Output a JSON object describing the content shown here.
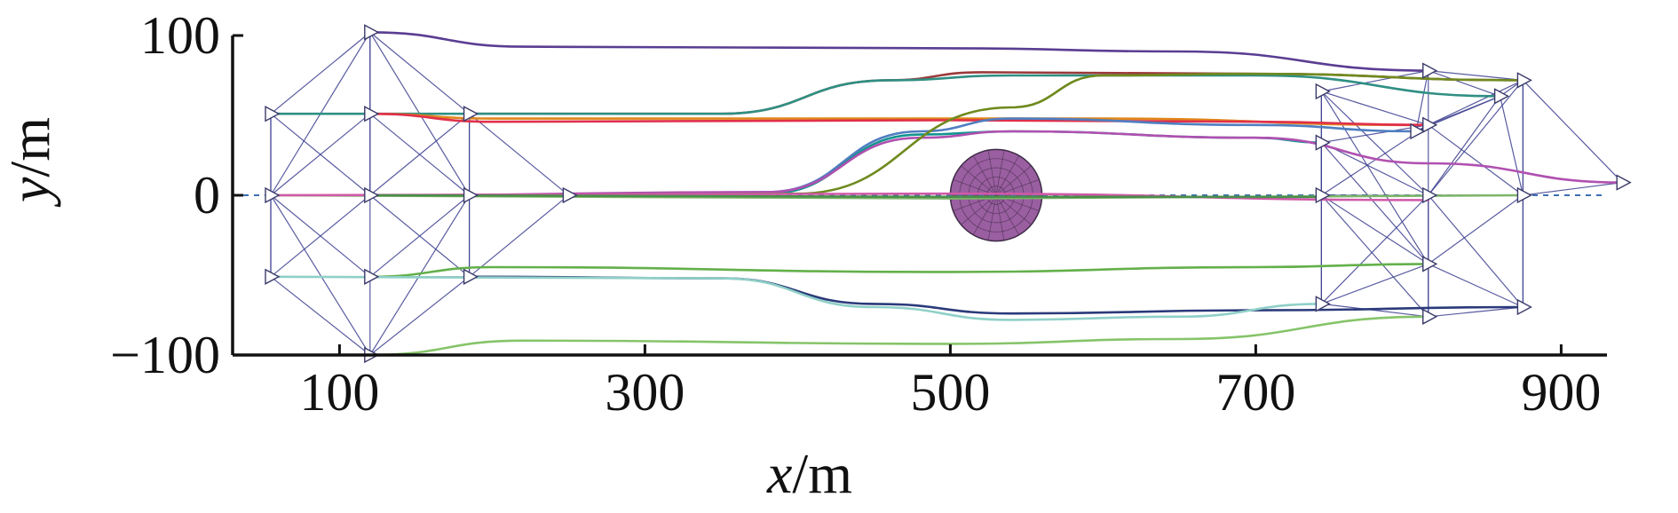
{
  "chart_data": {
    "type": "line",
    "title": "",
    "xlabel_var": "x",
    "xlabel_unit": "/m",
    "ylabel_var": "y",
    "ylabel_unit": "/m",
    "xlim": [
      30,
      930
    ],
    "ylim": [
      -100,
      100
    ],
    "x_ticks": [
      100,
      300,
      500,
      700,
      900
    ],
    "x_tick_labels": [
      "100",
      "300",
      "500",
      "700",
      "900"
    ],
    "y_ticks": [
      100,
      0,
      -100
    ],
    "y_tick_labels": [
      "100",
      "0",
      "−100"
    ],
    "grid": false,
    "legend": "none",
    "obstacle": {
      "center": [
        530,
        0
      ],
      "radius": 30,
      "color": "#9a5fa0"
    },
    "centerline": {
      "y": 0,
      "x_range": [
        30,
        930
      ],
      "color": "#3b6fb0"
    },
    "formation_start": {
      "agents": [
        [
          120,
          102
        ],
        [
          55,
          51
        ],
        [
          120,
          51
        ],
        [
          185,
          51
        ],
        [
          55,
          0
        ],
        [
          120,
          0
        ],
        [
          185,
          0
        ],
        [
          250,
          0
        ],
        [
          55,
          -51
        ],
        [
          120,
          -51
        ],
        [
          185,
          -51
        ],
        [
          120,
          -100
        ]
      ],
      "edges": [
        [
          0,
          1
        ],
        [
          0,
          2
        ],
        [
          0,
          3
        ],
        [
          0,
          5
        ],
        [
          0,
          4
        ],
        [
          0,
          6
        ],
        [
          1,
          2
        ],
        [
          2,
          3
        ],
        [
          1,
          4
        ],
        [
          1,
          5
        ],
        [
          2,
          4
        ],
        [
          2,
          5
        ],
        [
          2,
          6
        ],
        [
          3,
          5
        ],
        [
          3,
          6
        ],
        [
          3,
          7
        ],
        [
          4,
          5
        ],
        [
          5,
          6
        ],
        [
          6,
          7
        ],
        [
          4,
          8
        ],
        [
          4,
          9
        ],
        [
          5,
          8
        ],
        [
          5,
          9
        ],
        [
          5,
          10
        ],
        [
          6,
          9
        ],
        [
          6,
          10
        ],
        [
          7,
          10
        ],
        [
          8,
          9
        ],
        [
          9,
          10
        ],
        [
          8,
          11
        ],
        [
          9,
          11
        ],
        [
          10,
          11
        ],
        [
          4,
          11
        ],
        [
          6,
          11
        ],
        [
          1,
          8
        ],
        [
          3,
          10
        ]
      ],
      "color": "#3c3f8f"
    },
    "formation_end": {
      "agents": [
        [
          813,
          78
        ],
        [
          743,
          65
        ],
        [
          813,
          44
        ],
        [
          875,
          72
        ],
        [
          743,
          33
        ],
        [
          860,
          62
        ],
        [
          743,
          0
        ],
        [
          813,
          0
        ],
        [
          875,
          0
        ],
        [
          940,
          8
        ],
        [
          743,
          -68
        ],
        [
          813,
          -43
        ],
        [
          875,
          -70
        ],
        [
          813,
          -76
        ],
        [
          805,
          40
        ]
      ],
      "edges": [
        [
          0,
          1
        ],
        [
          0,
          2
        ],
        [
          0,
          3
        ],
        [
          0,
          5
        ],
        [
          1,
          2
        ],
        [
          1,
          4
        ],
        [
          1,
          6
        ],
        [
          1,
          7
        ],
        [
          2,
          3
        ],
        [
          2,
          4
        ],
        [
          2,
          5
        ],
        [
          2,
          6
        ],
        [
          2,
          7
        ],
        [
          2,
          8
        ],
        [
          2,
          14
        ],
        [
          3,
          5
        ],
        [
          3,
          8
        ],
        [
          3,
          9
        ],
        [
          3,
          7
        ],
        [
          4,
          6
        ],
        [
          4,
          7
        ],
        [
          4,
          11
        ],
        [
          5,
          7
        ],
        [
          5,
          8
        ],
        [
          5,
          14
        ],
        [
          6,
          7
        ],
        [
          6,
          10
        ],
        [
          6,
          11
        ],
        [
          7,
          8
        ],
        [
          7,
          10
        ],
        [
          7,
          11
        ],
        [
          7,
          12
        ],
        [
          7,
          13
        ],
        [
          8,
          9
        ],
        [
          8,
          11
        ],
        [
          8,
          12
        ],
        [
          10,
          11
        ],
        [
          10,
          13
        ],
        [
          11,
          12
        ],
        [
          11,
          13
        ],
        [
          12,
          13
        ],
        [
          3,
          12
        ],
        [
          0,
          14
        ],
        [
          1,
          11
        ],
        [
          4,
          10
        ],
        [
          6,
          13
        ]
      ],
      "color": "#3c3f8f"
    },
    "series": [
      {
        "color": "#5a3d92",
        "points": [
          [
            120,
            102
          ],
          [
            220,
            93
          ],
          [
            500,
            92
          ],
          [
            650,
            90
          ],
          [
            813,
            78
          ]
        ]
      },
      {
        "color": "#9b3a3a",
        "points": [
          [
            185,
            51
          ],
          [
            350,
            51
          ],
          [
            460,
            72
          ],
          [
            520,
            77
          ],
          [
            700,
            76
          ],
          [
            875,
            72
          ]
        ]
      },
      {
        "color": "#2f8f83",
        "points": [
          [
            55,
            51
          ],
          [
            350,
            51
          ],
          [
            460,
            72
          ],
          [
            540,
            75
          ],
          [
            700,
            75
          ],
          [
            860,
            62
          ]
        ]
      },
      {
        "color": "#e0861a",
        "points": [
          [
            120,
            51
          ],
          [
            200,
            48
          ],
          [
            600,
            48
          ],
          [
            805,
            44
          ]
        ]
      },
      {
        "color": "#e0304a",
        "points": [
          [
            120,
            51
          ],
          [
            200,
            46
          ],
          [
            500,
            47
          ],
          [
            700,
            46
          ],
          [
            813,
            44
          ]
        ]
      },
      {
        "color": "#4f7ec0",
        "points": [
          [
            250,
            0
          ],
          [
            380,
            2
          ],
          [
            480,
            40
          ],
          [
            540,
            48
          ],
          [
            700,
            44
          ],
          [
            805,
            40
          ]
        ]
      },
      {
        "color": "#12948f",
        "points": [
          [
            185,
            0
          ],
          [
            380,
            1
          ],
          [
            480,
            38
          ],
          [
            540,
            40
          ],
          [
            700,
            36
          ],
          [
            743,
            33
          ]
        ]
      },
      {
        "color": "#b050b0",
        "points": [
          [
            120,
            0
          ],
          [
            380,
            2
          ],
          [
            480,
            36
          ],
          [
            540,
            40
          ],
          [
            700,
            36
          ],
          [
            813,
            20
          ],
          [
            940,
            8
          ]
        ]
      },
      {
        "color": "#6f8a1e",
        "points": [
          [
            185,
            0
          ],
          [
            400,
            1
          ],
          [
            540,
            55
          ],
          [
            600,
            75
          ],
          [
            700,
            76
          ],
          [
            875,
            72
          ]
        ]
      },
      {
        "color": "#7fb56a",
        "points": [
          [
            55,
            0
          ],
          [
            500,
            -2
          ],
          [
            875,
            0
          ]
        ]
      },
      {
        "color": "#d05aa8",
        "points": [
          [
            55,
            0
          ],
          [
            500,
            1
          ],
          [
            813,
            -3
          ]
        ]
      },
      {
        "color": "#4a8f4a",
        "points": [
          [
            120,
            0
          ],
          [
            500,
            -1
          ],
          [
            743,
            -1
          ]
        ]
      },
      {
        "color": "#63b04a",
        "points": [
          [
            120,
            -51
          ],
          [
            200,
            -45
          ],
          [
            500,
            -48
          ],
          [
            700,
            -45
          ],
          [
            813,
            -43
          ]
        ]
      },
      {
        "color": "#2a3a7a",
        "points": [
          [
            185,
            -51
          ],
          [
            350,
            -52
          ],
          [
            450,
            -68
          ],
          [
            540,
            -74
          ],
          [
            700,
            -72
          ],
          [
            875,
            -70
          ]
        ]
      },
      {
        "color": "#8fd0c8",
        "points": [
          [
            55,
            -51
          ],
          [
            350,
            -52
          ],
          [
            450,
            -70
          ],
          [
            540,
            -78
          ],
          [
            650,
            -76
          ],
          [
            743,
            -68
          ]
        ]
      },
      {
        "color": "#86c46a",
        "points": [
          [
            120,
            -100
          ],
          [
            220,
            -91
          ],
          [
            500,
            -93
          ],
          [
            650,
            -90
          ],
          [
            813,
            -76
          ]
        ]
      }
    ]
  }
}
